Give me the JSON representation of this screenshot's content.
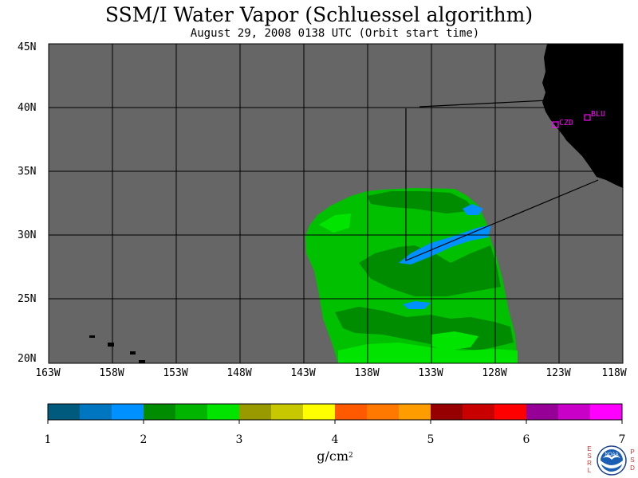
{
  "title": "SSM/I Water Vapor (Schluessel algorithm)",
  "subtitle": "August 29, 2008  0138 UTC  (Orbit start time)",
  "lat_labels": [
    "45N",
    "40N",
    "35N",
    "30N",
    "25N",
    "20N"
  ],
  "lon_labels": [
    "163W",
    "158W",
    "153W",
    "148W",
    "143W",
    "138W",
    "133W",
    "128W",
    "123W",
    "118W"
  ],
  "stations": [
    {
      "label": "CZD",
      "color": "#ff00ff"
    },
    {
      "label": "BLU",
      "color": "#ff00ff"
    }
  ],
  "colors": {
    "ocean_nodata": "#666666",
    "land": "#000000",
    "grid": "#000000",
    "station": "#ff00ff"
  },
  "colorbar": {
    "ticks": [
      "1",
      "2",
      "3",
      "4",
      "5",
      "6",
      "7"
    ],
    "unit_base": "g/cm",
    "unit_exp": "2",
    "colors": [
      "#005a7e",
      "#0076c0",
      "#0090ff",
      "#008c00",
      "#00b400",
      "#00e400",
      "#999900",
      "#c8c800",
      "#ffff00",
      "#ff5a00",
      "#ff7800",
      "#ff9c00",
      "#960000",
      "#c80000",
      "#ff0000",
      "#960096",
      "#c800c8",
      "#ff00ff"
    ]
  },
  "logo": {
    "left_letters": [
      "E",
      "S",
      "R",
      "L"
    ],
    "right_letters": [
      "P",
      "S",
      "D"
    ],
    "emblem_text": "NOAA"
  }
}
